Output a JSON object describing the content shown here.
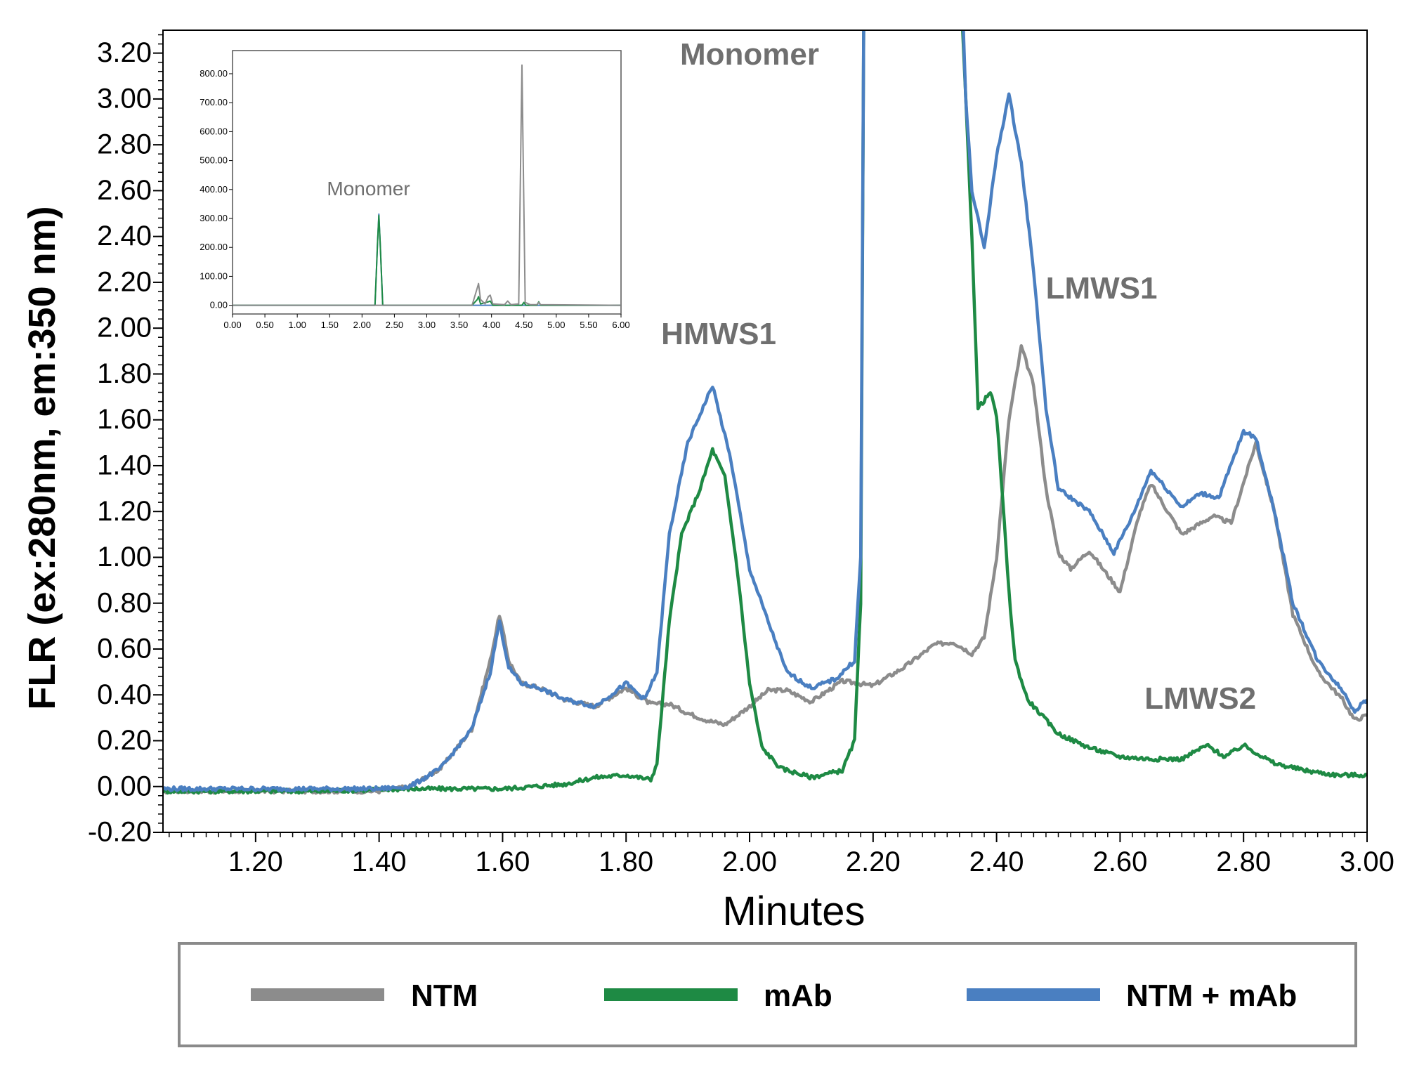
{
  "chart_data": [
    {
      "type": "line",
      "xlabel": "Minutes",
      "ylabel": "FLR (ex:280nm, em:350 nm)",
      "xlim": [
        1.05,
        3.0
      ],
      "ylim": [
        -0.2,
        3.3
      ],
      "x_ticks": [
        "1.20",
        "1.40",
        "1.60",
        "1.80",
        "2.00",
        "2.20",
        "2.40",
        "2.60",
        "2.80",
        "3.00"
      ],
      "y_ticks": [
        "-0.20",
        "0.00",
        "0.20",
        "0.40",
        "0.60",
        "0.80",
        "1.00",
        "1.20",
        "1.40",
        "1.60",
        "1.80",
        "2.00",
        "2.20",
        "2.40",
        "2.60",
        "2.80",
        "3.00",
        "3.20"
      ],
      "grid": false,
      "legend_position": "bottom",
      "annotations": [
        {
          "text": "Monomer",
          "x": 2.0,
          "y": 3.15
        },
        {
          "text": "HMWS1",
          "x": 1.95,
          "y": 1.93
        },
        {
          "text": "LMWS1",
          "x": 2.57,
          "y": 2.13
        },
        {
          "text": "LMWS2",
          "x": 2.73,
          "y": 0.34
        }
      ],
      "series": [
        {
          "name": "NTM",
          "color": "#8c8c8c",
          "x": [
            1.05,
            1.1,
            1.2,
            1.3,
            1.4,
            1.45,
            1.5,
            1.55,
            1.58,
            1.595,
            1.61,
            1.63,
            1.66,
            1.7,
            1.75,
            1.8,
            1.84,
            1.87,
            1.9,
            1.93,
            1.96,
            2.0,
            2.03,
            2.06,
            2.1,
            2.15,
            2.2,
            2.25,
            2.3,
            2.33,
            2.36,
            2.38,
            2.4,
            2.42,
            2.44,
            2.46,
            2.48,
            2.5,
            2.52,
            2.55,
            2.6,
            2.63,
            2.65,
            2.7,
            2.75,
            2.78,
            2.82,
            2.85,
            2.88,
            2.92,
            2.96,
            2.98,
            3.0
          ],
          "y": [
            -0.02,
            -0.02,
            -0.02,
            -0.02,
            -0.02,
            0.0,
            0.08,
            0.25,
            0.55,
            0.75,
            0.55,
            0.45,
            0.43,
            0.38,
            0.35,
            0.43,
            0.36,
            0.36,
            0.32,
            0.29,
            0.27,
            0.35,
            0.42,
            0.42,
            0.37,
            0.46,
            0.44,
            0.52,
            0.62,
            0.63,
            0.58,
            0.65,
            1.0,
            1.6,
            1.92,
            1.75,
            1.3,
            1.02,
            0.95,
            1.03,
            0.85,
            1.18,
            1.32,
            1.1,
            1.18,
            1.15,
            1.5,
            1.2,
            0.75,
            0.5,
            0.38,
            0.29,
            0.31
          ]
        },
        {
          "name": "mAb",
          "color": "#1e8a44",
          "x": [
            1.05,
            1.3,
            1.45,
            1.6,
            1.7,
            1.75,
            1.8,
            1.84,
            1.85,
            1.87,
            1.89,
            1.92,
            1.94,
            1.96,
            1.98,
            2.0,
            2.02,
            2.05,
            2.1,
            2.15,
            2.17,
            2.18,
            2.185,
            2.2,
            2.3,
            2.34,
            2.345,
            2.35,
            2.36,
            2.37,
            2.39,
            2.4,
            2.41,
            2.42,
            2.43,
            2.45,
            2.5,
            2.55,
            2.6,
            2.65,
            2.7,
            2.74,
            2.77,
            2.8,
            2.85,
            2.9,
            2.95,
            3.0
          ],
          "y": [
            -0.02,
            -0.02,
            -0.01,
            -0.01,
            0.01,
            0.04,
            0.05,
            0.03,
            0.1,
            0.72,
            1.1,
            1.3,
            1.47,
            1.35,
            0.95,
            0.45,
            0.17,
            0.08,
            0.04,
            0.07,
            0.2,
            0.8,
            3.4,
            3.4,
            3.4,
            3.4,
            3.3,
            3.0,
            2.4,
            1.65,
            1.72,
            1.62,
            1.25,
            0.85,
            0.55,
            0.38,
            0.23,
            0.17,
            0.13,
            0.12,
            0.12,
            0.18,
            0.13,
            0.18,
            0.1,
            0.07,
            0.05,
            0.05
          ]
        },
        {
          "name": "NTM +  mAb",
          "color": "#4a7fc1",
          "x": [
            1.05,
            1.1,
            1.2,
            1.3,
            1.4,
            1.45,
            1.5,
            1.55,
            1.58,
            1.595,
            1.61,
            1.63,
            1.66,
            1.7,
            1.75,
            1.8,
            1.83,
            1.85,
            1.87,
            1.9,
            1.94,
            1.97,
            2.0,
            2.03,
            2.06,
            2.1,
            2.14,
            2.17,
            2.18,
            2.185,
            2.2,
            2.3,
            2.345,
            2.35,
            2.36,
            2.38,
            2.4,
            2.42,
            2.44,
            2.46,
            2.48,
            2.5,
            2.55,
            2.59,
            2.62,
            2.65,
            2.7,
            2.73,
            2.76,
            2.8,
            2.82,
            2.85,
            2.88,
            2.92,
            2.96,
            2.98,
            3.0
          ],
          "y": [
            -0.01,
            -0.01,
            -0.01,
            -0.01,
            -0.01,
            0.0,
            0.08,
            0.25,
            0.5,
            0.72,
            0.52,
            0.45,
            0.43,
            0.38,
            0.35,
            0.45,
            0.38,
            0.5,
            1.1,
            1.5,
            1.75,
            1.42,
            0.95,
            0.72,
            0.5,
            0.43,
            0.47,
            0.55,
            1.0,
            3.4,
            3.4,
            3.4,
            3.4,
            3.0,
            2.6,
            2.35,
            2.75,
            3.02,
            2.72,
            2.25,
            1.65,
            1.3,
            1.2,
            1.02,
            1.18,
            1.38,
            1.22,
            1.28,
            1.26,
            1.55,
            1.52,
            1.2,
            0.8,
            0.55,
            0.42,
            0.33,
            0.38
          ]
        }
      ]
    },
    {
      "type": "line",
      "inset": true,
      "xlim": [
        0.0,
        6.0
      ],
      "ylim": [
        -30,
        880
      ],
      "x_ticks": [
        "0.00",
        "0.50",
        "1.00",
        "1.50",
        "2.00",
        "2.50",
        "3.00",
        "3.50",
        "4.00",
        "4.50",
        "5.00",
        "5.50",
        "6.00"
      ],
      "y_ticks": [
        "0.00",
        "100.00",
        "200.00",
        "300.00",
        "400.00",
        "500.00",
        "600.00",
        "700.00",
        "800.00"
      ],
      "annotations": [
        {
          "text": "Monomer",
          "x": 2.1,
          "y": 380
        }
      ],
      "series": [
        {
          "name": "NTM",
          "color": "#8c8c8c",
          "x": [
            0.0,
            3.7,
            3.78,
            3.8,
            3.83,
            3.9,
            3.95,
            3.98,
            4.02,
            4.2,
            4.25,
            4.3,
            4.42,
            4.45,
            4.47,
            4.49,
            4.52,
            4.6,
            4.7,
            4.73,
            4.76,
            6.0
          ],
          "y": [
            0,
            0,
            60,
            75,
            20,
            5,
            30,
            35,
            5,
            2,
            15,
            2,
            5,
            500,
            830,
            500,
            10,
            2,
            2,
            10,
            2,
            0
          ]
        },
        {
          "name": "mAb",
          "color": "#1e8a44",
          "x": [
            0.0,
            2.2,
            2.24,
            2.26,
            2.28,
            2.32,
            3.7,
            3.78,
            3.8,
            3.83,
            3.95,
            3.98,
            4.02,
            4.47,
            4.5,
            4.53,
            4.7,
            4.73,
            4.76,
            6.0
          ],
          "y": [
            0,
            0,
            220,
            310,
            220,
            0,
            0,
            20,
            30,
            5,
            12,
            15,
            0,
            0,
            10,
            0,
            0,
            12,
            0,
            0
          ]
        },
        {
          "name": "NTM +  mAb",
          "color": "#4a7fc1",
          "x": [
            0.0,
            2.2,
            2.24,
            2.26,
            2.28,
            2.32,
            6.0
          ],
          "y": [
            0,
            0,
            220,
            315,
            220,
            0,
            0
          ]
        }
      ]
    }
  ]
}
